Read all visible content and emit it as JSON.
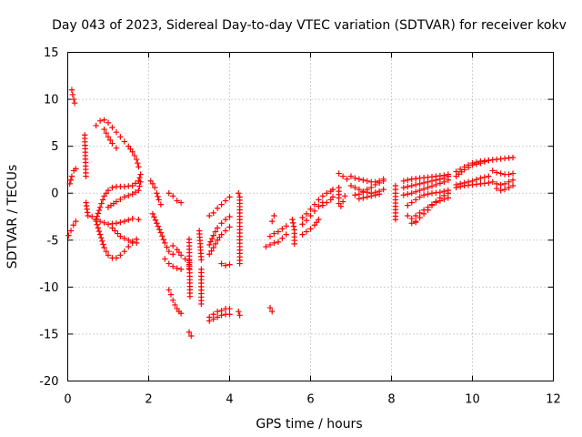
{
  "chart_data": {
    "type": "scatter",
    "title": "Day 043 of 2023, Sidereal Day-to-day VTEC variation (SDTVAR) for receiver kokv",
    "xlabel": "GPS time / hours",
    "ylabel": "SDTVAR / TECUs",
    "xlim": [
      0,
      12
    ],
    "ylim": [
      -20,
      15
    ],
    "xticks": [
      "0",
      "2",
      "4",
      "6",
      "8",
      "10",
      "12"
    ],
    "yticks": [
      "15",
      "10",
      "5",
      "0",
      "-5",
      "-10",
      "-15",
      "-20"
    ],
    "grid": true,
    "marker": "plus",
    "color": "#ff0000",
    "series": [
      {
        "x": [
          0.05,
          0.1,
          0.15,
          0.2
        ],
        "y": [
          1.0,
          1.8,
          2.4,
          2.6
        ]
      },
      {
        "x": [
          0.02,
          0.08,
          0.14,
          0.2
        ],
        "y": [
          -4.5,
          -4.0,
          -3.4,
          -3.0
        ]
      },
      {
        "x": [
          0.1,
          0.12,
          0.15,
          0.17
        ],
        "y": [
          11.0,
          10.5,
          10.0,
          9.6
        ]
      },
      {
        "x": [
          0.42,
          0.45
        ],
        "y": [
          6.2,
          1.8
        ]
      },
      {
        "x": [
          0.45,
          0.5
        ],
        "y": [
          -1.0,
          -2.4
        ]
      },
      {
        "x": [
          0.7,
          0.8,
          0.9,
          1.0,
          1.1,
          1.2,
          1.3,
          1.4,
          1.5,
          1.6,
          1.7,
          1.75
        ],
        "y": [
          7.2,
          7.7,
          7.8,
          7.5,
          7.0,
          6.5,
          6.0,
          5.5,
          5.0,
          4.4,
          3.6,
          2.8
        ]
      },
      {
        "x": [
          0.9,
          1.0,
          1.1,
          1.2
        ],
        "y": [
          6.8,
          6.0,
          5.3,
          4.8
        ]
      },
      {
        "x": [
          0.7,
          0.8,
          0.9,
          1.0,
          1.1,
          1.2,
          1.4,
          1.6,
          1.75,
          1.8
        ],
        "y": [
          -2.8,
          -1.5,
          -0.3,
          0.3,
          0.6,
          0.7,
          0.7,
          0.8,
          1.3,
          2.0
        ]
      },
      {
        "x": [
          0.7,
          0.8,
          0.9,
          1.0,
          1.1,
          1.2,
          1.3,
          1.4,
          1.5,
          1.6,
          1.7
        ],
        "y": [
          -3.0,
          -4.4,
          -5.8,
          -6.6,
          -6.9,
          -6.9,
          -6.6,
          -6.2,
          -5.7,
          -5.3,
          -4.9
        ]
      },
      {
        "x": [
          0.6,
          0.8,
          1.0,
          1.2,
          1.4,
          1.6,
          1.75
        ],
        "y": [
          -2.5,
          -3.0,
          -3.3,
          -3.2,
          -3.0,
          -2.7,
          -2.8
        ]
      },
      {
        "x": [
          1.0,
          1.2,
          1.4,
          1.6,
          1.75,
          1.8
        ],
        "y": [
          -1.5,
          -0.9,
          -0.4,
          -0.1,
          0.3,
          1.2
        ]
      },
      {
        "x": [
          1.1,
          1.3,
          1.5,
          1.7
        ],
        "y": [
          -3.7,
          -4.6,
          -5.0,
          -5.3
        ]
      },
      {
        "x": [
          2.05,
          2.1,
          2.15,
          2.2,
          2.25,
          2.3
        ],
        "y": [
          1.3,
          1.0,
          0.6,
          0.0,
          -0.7,
          -1.2
        ]
      },
      {
        "x": [
          2.1,
          2.2,
          2.3,
          2.4,
          2.5,
          2.6
        ],
        "y": [
          -2.2,
          -3.2,
          -4.2,
          -5.3,
          -6.2,
          -6.5
        ]
      },
      {
        "x": [
          2.6,
          2.7,
          2.8,
          2.9
        ],
        "y": [
          -5.6,
          -6.0,
          -6.6,
          -7.0
        ]
      },
      {
        "x": [
          2.4,
          2.5,
          2.6,
          2.7,
          2.8
        ],
        "y": [
          -7.0,
          -7.5,
          -7.8,
          -8.0,
          -8.1
        ]
      },
      {
        "x": [
          2.5,
          2.55,
          2.6,
          2.65,
          2.7,
          2.75,
          2.8
        ],
        "y": [
          -10.3,
          -10.8,
          -11.4,
          -11.9,
          -12.3,
          -12.6,
          -12.8
        ]
      },
      {
        "x": [
          2.5,
          2.6,
          2.7,
          2.8
        ],
        "y": [
          0.0,
          -0.3,
          -0.8,
          -1.0
        ]
      },
      {
        "x": [
          3.0,
          3.0,
          3.0
        ],
        "y": [
          -7.2,
          -7.6,
          -8.0
        ]
      },
      {
        "x": [
          3.0,
          3.02
        ],
        "y": [
          -4.9,
          -11.0
        ]
      },
      {
        "x": [
          3.0,
          3.05
        ],
        "y": [
          -14.8,
          -15.2
        ]
      },
      {
        "x": [
          3.25,
          3.3
        ],
        "y": [
          -4.0,
          -7.1
        ]
      },
      {
        "x": [
          3.3,
          3.3
        ],
        "y": [
          -8.1,
          -11.8
        ]
      },
      {
        "x": [
          3.5,
          3.6,
          3.7,
          3.8,
          3.9,
          4.0
        ],
        "y": [
          -2.4,
          -2.1,
          -1.6,
          -1.2,
          -0.8,
          -0.4
        ]
      },
      {
        "x": [
          3.5,
          3.6,
          3.7,
          3.8,
          3.9,
          4.0
        ],
        "y": [
          -5.5,
          -4.5,
          -3.7,
          -3.2,
          -2.8,
          -2.5
        ]
      },
      {
        "x": [
          3.5,
          3.6,
          3.7,
          3.8,
          3.9,
          4.0
        ],
        "y": [
          -6.5,
          -5.8,
          -5.0,
          -4.4,
          -4.0,
          -3.6
        ]
      },
      {
        "x": [
          3.5,
          3.6,
          3.7,
          3.8,
          3.9,
          4.0
        ],
        "y": [
          -13.2,
          -12.9,
          -12.6,
          -12.5,
          -12.3,
          -12.3
        ]
      },
      {
        "x": [
          3.5,
          3.6,
          3.7,
          3.8,
          3.9,
          4.0
        ],
        "y": [
          -13.6,
          -13.4,
          -13.2,
          -13.0,
          -12.9,
          -12.9
        ]
      },
      {
        "x": [
          3.8,
          3.9,
          4.0
        ],
        "y": [
          -7.5,
          -7.7,
          -7.6
        ]
      },
      {
        "x": [
          4.22,
          4.25,
          4.25,
          4.25
        ],
        "y": [
          0.0,
          -0.4,
          -2.8,
          -7.5
        ]
      },
      {
        "x": [
          4.22,
          4.25
        ],
        "y": [
          -12.6,
          -13.0
        ]
      },
      {
        "x": [
          4.9,
          5.0,
          5.1,
          5.2,
          5.3,
          5.4
        ],
        "y": [
          -5.7,
          -5.5,
          -5.3,
          -5.2,
          -4.8,
          -4.4
        ]
      },
      {
        "x": [
          5.0,
          5.1,
          5.2,
          5.3,
          5.4
        ],
        "y": [
          -4.6,
          -4.3,
          -4.1,
          -3.8,
          -3.5
        ]
      },
      {
        "x": [
          5.05,
          5.1
        ],
        "y": [
          -3.0,
          -2.4
        ]
      },
      {
        "x": [
          5.0,
          5.05
        ],
        "y": [
          -12.2,
          -12.6
        ]
      },
      {
        "x": [
          5.55,
          5.6,
          5.6
        ],
        "y": [
          -2.8,
          -3.9,
          -5.4
        ]
      },
      {
        "x": [
          5.8,
          5.9,
          6.0,
          6.1,
          6.2
        ],
        "y": [
          -4.4,
          -4.1,
          -3.8,
          -3.4,
          -2.8
        ]
      },
      {
        "x": [
          5.8,
          5.9,
          6.0,
          6.1,
          6.2,
          6.3
        ],
        "y": [
          -2.6,
          -2.2,
          -1.7,
          -1.2,
          -0.7,
          -0.3
        ]
      },
      {
        "x": [
          5.8,
          5.9,
          6.0,
          6.1,
          6.2,
          6.3
        ],
        "y": [
          -3.3,
          -2.9,
          -2.4,
          -1.9,
          -1.4,
          -1.0
        ]
      },
      {
        "x": [
          6.3,
          6.4,
          6.5,
          6.55
        ],
        "y": [
          -1.3,
          -1.0,
          -0.7,
          -0.4
        ]
      },
      {
        "x": [
          6.4,
          6.5,
          6.55
        ],
        "y": [
          0.0,
          0.2,
          0.4
        ]
      },
      {
        "x": [
          6.7,
          6.7,
          6.7,
          6.7
        ],
        "y": [
          -1.1,
          -0.5,
          0.2,
          0.6
        ]
      },
      {
        "x": [
          6.75,
          6.8,
          6.85
        ],
        "y": [
          -1.4,
          -0.9,
          -0.3
        ]
      },
      {
        "x": [
          6.7,
          6.8,
          6.9
        ],
        "y": [
          2.1,
          1.8,
          1.5
        ]
      },
      {
        "x": [
          7.0,
          7.1,
          7.2,
          7.3,
          7.4,
          7.5,
          7.6,
          7.7,
          7.8
        ],
        "y": [
          1.8,
          1.6,
          1.5,
          1.4,
          1.3,
          1.2,
          1.2,
          1.3,
          1.5
        ]
      },
      {
        "x": [
          7.0,
          7.1,
          7.2,
          7.3,
          7.4,
          7.5,
          7.6,
          7.7,
          7.8
        ],
        "y": [
          0.8,
          0.6,
          0.4,
          0.2,
          0.1,
          0.0,
          0.1,
          0.2,
          0.4
        ]
      },
      {
        "x": [
          7.1,
          7.2,
          7.3,
          7.4,
          7.5,
          7.6,
          7.7,
          7.8
        ],
        "y": [
          -0.2,
          -0.1,
          0.1,
          0.4,
          0.6,
          0.9,
          1.1,
          1.3
        ]
      },
      {
        "x": [
          7.2,
          7.3,
          7.4,
          7.5,
          7.6,
          7.7
        ],
        "y": [
          -0.6,
          -0.5,
          -0.4,
          -0.3,
          -0.2,
          -0.1
        ]
      },
      {
        "x": [
          8.1,
          8.1,
          8.1,
          8.1
        ],
        "y": [
          0.8,
          0.0,
          -0.7,
          -2.8
        ]
      },
      {
        "x": [
          8.3,
          8.5,
          8.7,
          8.9,
          9.1,
          9.3,
          9.4
        ],
        "y": [
          1.3,
          1.5,
          1.6,
          1.7,
          1.8,
          1.9,
          2.0
        ]
      },
      {
        "x": [
          8.3,
          8.5,
          8.7,
          8.9,
          9.1,
          9.3,
          9.4
        ],
        "y": [
          0.6,
          0.8,
          1.0,
          1.2,
          1.4,
          1.6,
          1.8
        ]
      },
      {
        "x": [
          8.3,
          8.5,
          8.7,
          8.9,
          9.1,
          9.3,
          9.4
        ],
        "y": [
          -0.2,
          0.0,
          0.3,
          0.6,
          0.9,
          1.2,
          1.4
        ]
      },
      {
        "x": [
          8.4,
          8.5,
          8.6,
          8.7,
          8.8,
          9.0,
          9.2,
          9.4
        ],
        "y": [
          -1.3,
          -1.0,
          -0.7,
          -0.4,
          -0.2,
          0.0,
          0.1,
          0.3
        ]
      },
      {
        "x": [
          8.5,
          8.6,
          8.7,
          8.8,
          8.9,
          9.0,
          9.1,
          9.2,
          9.4
        ],
        "y": [
          -3.2,
          -3.0,
          -2.6,
          -2.2,
          -1.8,
          -1.3,
          -0.9,
          -0.5,
          0.0
        ]
      },
      {
        "x": [
          8.6,
          8.7,
          8.8,
          8.9,
          9.0,
          9.2,
          9.4
        ],
        "y": [
          -2.4,
          -2.1,
          -1.8,
          -1.5,
          -1.2,
          -0.8,
          -0.5
        ]
      },
      {
        "x": [
          8.4,
          8.5,
          8.6
        ],
        "y": [
          -2.4,
          -2.7,
          -3.1
        ]
      },
      {
        "x": [
          9.6,
          9.8,
          10.0,
          10.2,
          10.4,
          10.6,
          10.8,
          11.0
        ],
        "y": [
          1.8,
          2.5,
          3.0,
          3.2,
          3.5,
          3.6,
          3.7,
          3.8
        ]
      },
      {
        "x": [
          9.6,
          9.8,
          10.0,
          10.2,
          10.4
        ],
        "y": [
          2.3,
          2.8,
          3.2,
          3.4,
          3.5
        ]
      },
      {
        "x": [
          9.6,
          9.8,
          10.0,
          10.2,
          10.4
        ],
        "y": [
          0.9,
          1.1,
          1.3,
          1.6,
          1.8
        ]
      },
      {
        "x": [
          9.6,
          9.8,
          10.0,
          10.2,
          10.4
        ],
        "y": [
          0.6,
          0.8,
          0.9,
          1.0,
          1.1
        ]
      },
      {
        "x": [
          10.5,
          10.6,
          10.7,
          10.8,
          10.9,
          11.0
        ],
        "y": [
          2.4,
          2.2,
          2.1,
          2.0,
          2.0,
          2.1
        ]
      },
      {
        "x": [
          10.5,
          10.6,
          10.7,
          10.8,
          10.9,
          11.0
        ],
        "y": [
          1.2,
          1.0,
          0.9,
          1.0,
          1.2,
          1.4
        ]
      },
      {
        "x": [
          10.6,
          10.7,
          10.8,
          10.9,
          11.0
        ],
        "y": [
          0.5,
          0.3,
          0.4,
          0.6,
          0.8
        ]
      }
    ]
  }
}
